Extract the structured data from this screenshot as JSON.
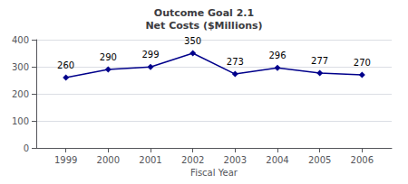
{
  "chart_data": {
    "type": "line",
    "title": "Outcome Goal 2.1\nNet Costs ($Millions)",
    "xlabel": "Fiscal Year",
    "x": [
      1999,
      2000,
      2001,
      2002,
      2003,
      2004,
      2005,
      2006
    ],
    "values": [
      260,
      290,
      299,
      350,
      273,
      296,
      277,
      270
    ],
    "color": "#00008B",
    "marker": "diamond",
    "xlim": [
      1998.3,
      2006.7
    ],
    "xticks": [
      1999,
      2000,
      2001,
      2002,
      2003,
      2004,
      2005,
      2006
    ],
    "ylim": [
      0,
      400
    ],
    "yticks": [
      0,
      100,
      200,
      300,
      400
    ],
    "grid": true,
    "data_labels": true
  }
}
